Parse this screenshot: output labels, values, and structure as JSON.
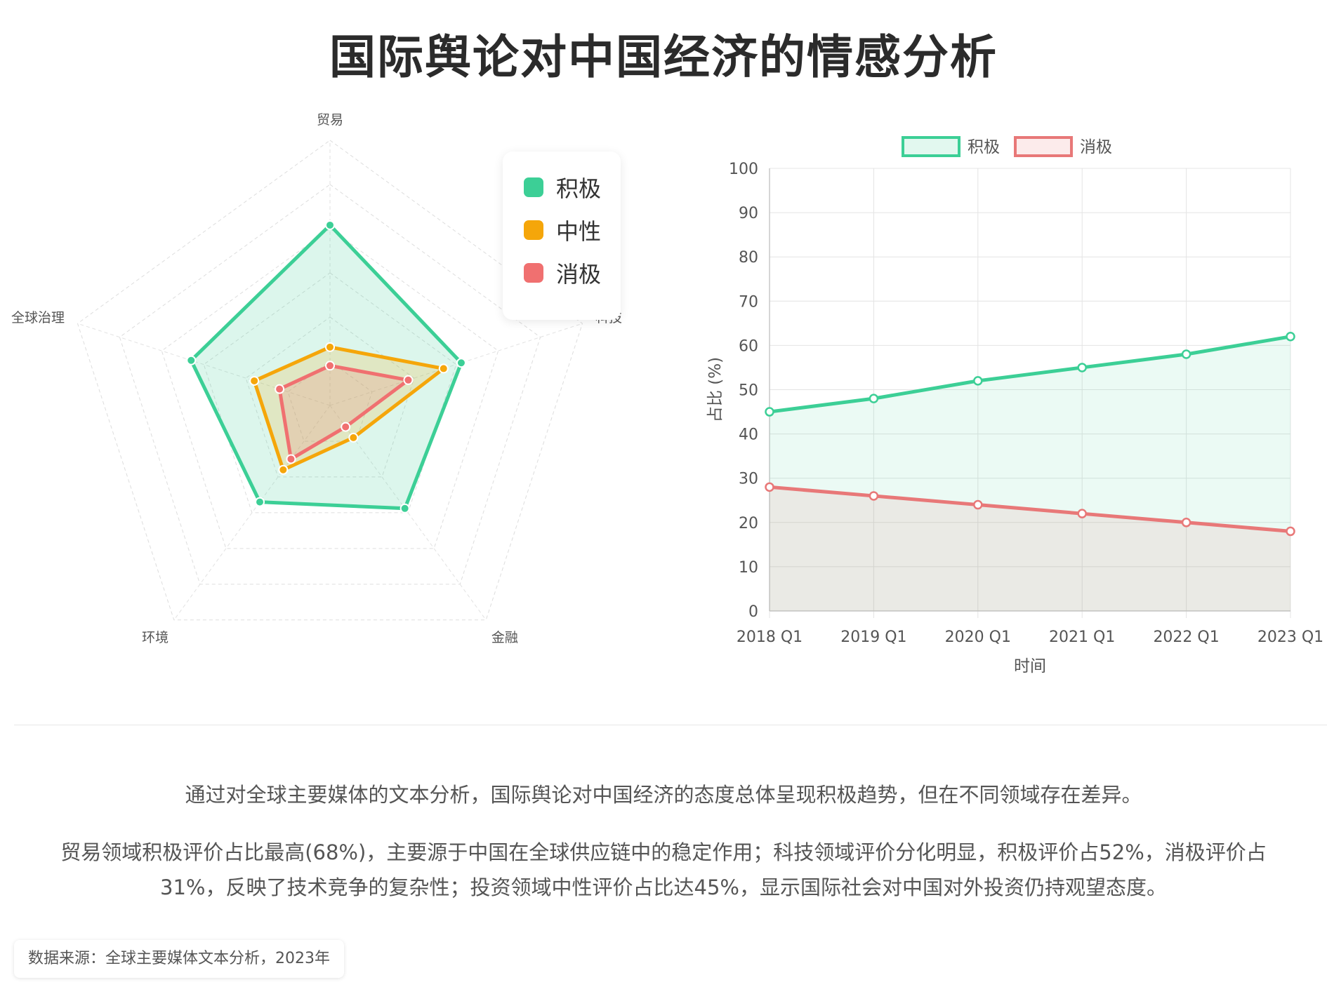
{
  "title": "国际舆论对中国经济的情感分析",
  "chart_data": [
    {
      "type": "radar",
      "axes": [
        "贸易",
        "科技",
        "金融",
        "环境",
        "全球治理"
      ],
      "series": [
        {
          "name": "积极",
          "color": "#3ccf96",
          "values": [
            68,
            52,
            48,
            45,
            55
          ]
        },
        {
          "name": "中性",
          "color": "#f5a60a",
          "values": [
            22,
            45,
            15,
            30,
            30
          ]
        },
        {
          "name": "消极",
          "color": "#f07070",
          "values": [
            15,
            31,
            10,
            25,
            20
          ]
        }
      ],
      "r_range": [
        0,
        100
      ],
      "legend": "right"
    },
    {
      "type": "line",
      "categories": [
        "2018 Q1",
        "2019 Q1",
        "2020 Q1",
        "2021 Q1",
        "2022 Q1",
        "2023 Q1"
      ],
      "series": [
        {
          "name": "积极",
          "color": "#3ccf96",
          "values": [
            45,
            48,
            52,
            55,
            58,
            62
          ]
        },
        {
          "name": "消极",
          "color": "#e87878",
          "values": [
            28,
            26,
            24,
            22,
            20,
            18
          ]
        }
      ],
      "xlabel": "时间",
      "ylabel": "占比 (%)",
      "ylim": [
        0,
        100
      ],
      "yticks": [
        0,
        10,
        20,
        30,
        40,
        50,
        60,
        70,
        80,
        90,
        100
      ],
      "fill": true,
      "grid": true,
      "legend": "top"
    }
  ],
  "summary": {
    "line1": "通过对全球主要媒体的文本分析，国际舆论对中国经济的态度总体呈现积极趋势，但在不同领域存在差异。",
    "line2": "贸易领域积极评价占比最高(68%)，主要源于中国在全球供应链中的稳定作用；科技领域评价分化明显，积极评价占52%，消极评价占31%，反映了技术竞争的复杂性；投资领域中性评价占比达45%，显示国际社会对中国对外投资仍持观望态度。"
  },
  "source": "数据来源：全球主要媒体文本分析，2023年"
}
